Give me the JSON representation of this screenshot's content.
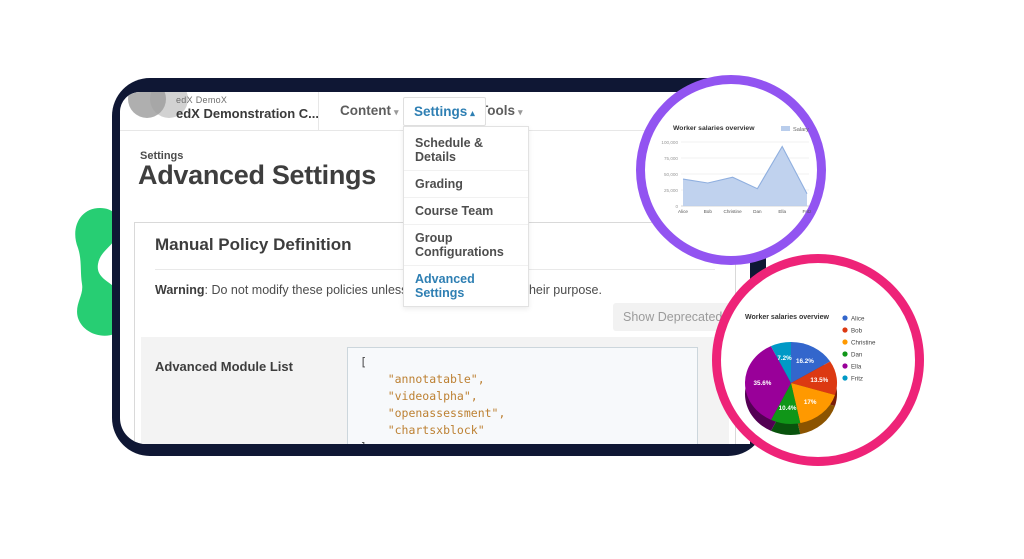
{
  "colors": {
    "navy_card": "#0f1734",
    "green_blob": "#27ce73",
    "purple_ring": "#9254f1",
    "pink_ring": "#ee2378",
    "accent_blue": "#2e7fb3",
    "code_string": "#bd8133",
    "button_bg": "#f2f2f2"
  },
  "window": {
    "header": {
      "course_org": "edX DemoX",
      "course_title": "edX Demonstration C...",
      "nav": [
        {
          "label": "Content",
          "caret": "▾"
        },
        {
          "label": "Settings",
          "caret": "▴"
        },
        {
          "label": "Tools",
          "caret": "▾"
        }
      ]
    },
    "dropdown": {
      "items": [
        "Schedule & Details",
        "Grading",
        "Course Team",
        "Group Configurations",
        "Advanced Settings"
      ],
      "active_item": "Advanced Settings"
    },
    "main": {
      "breadcrumb": "Settings",
      "page_title": "Advanced Settings",
      "section_title": "Manual Policy Definition",
      "warning_label": "Warning",
      "warning_text": ": Do not modify these policies unless you are familiar with their purpose.",
      "show_deprecated_button": "Show Deprecated Settings",
      "module_list_label": "Advanced Module List",
      "code_lines": [
        "[",
        "    \"annotatable\",",
        "    \"videoalpha\",",
        "    \"openassessment\",",
        "    \"chartsxblock\"",
        "]"
      ]
    }
  },
  "chart_data": [
    {
      "type": "area",
      "title": "Worker salaries overview",
      "legend_label": "Salary",
      "legend_position": "top-right",
      "categories": [
        "Alice",
        "Bob",
        "Christine",
        "Dan",
        "Ella",
        "Fritz"
      ],
      "values": [
        42000,
        36000,
        45000,
        27000,
        93000,
        19000
      ],
      "ylim": [
        0,
        100000
      ],
      "yticks": [
        0,
        25000,
        50000,
        75000,
        100000
      ],
      "ytick_labels": [
        "0",
        "25,000",
        "50,000",
        "75,000",
        "100,000"
      ],
      "grid": true,
      "area_color": "#b9cdec",
      "line_color": "#8fafdf"
    },
    {
      "type": "pie",
      "is3d": true,
      "title": "Worker salaries overview",
      "legend_position": "right",
      "labels": [
        "Alice",
        "Bob",
        "Christine",
        "Dan",
        "Ella",
        "Fritz"
      ],
      "values": [
        16.2,
        13.5,
        17.0,
        10.4,
        35.6,
        7.2
      ],
      "slice_labels": [
        "16.2%",
        "13.5%",
        "17%",
        "10.4%",
        "35.6%",
        "7.2%"
      ],
      "unit": "%",
      "colors": [
        "#3366cc",
        "#dc3912",
        "#ff9900",
        "#109618",
        "#990099",
        "#0099c6"
      ]
    }
  ]
}
